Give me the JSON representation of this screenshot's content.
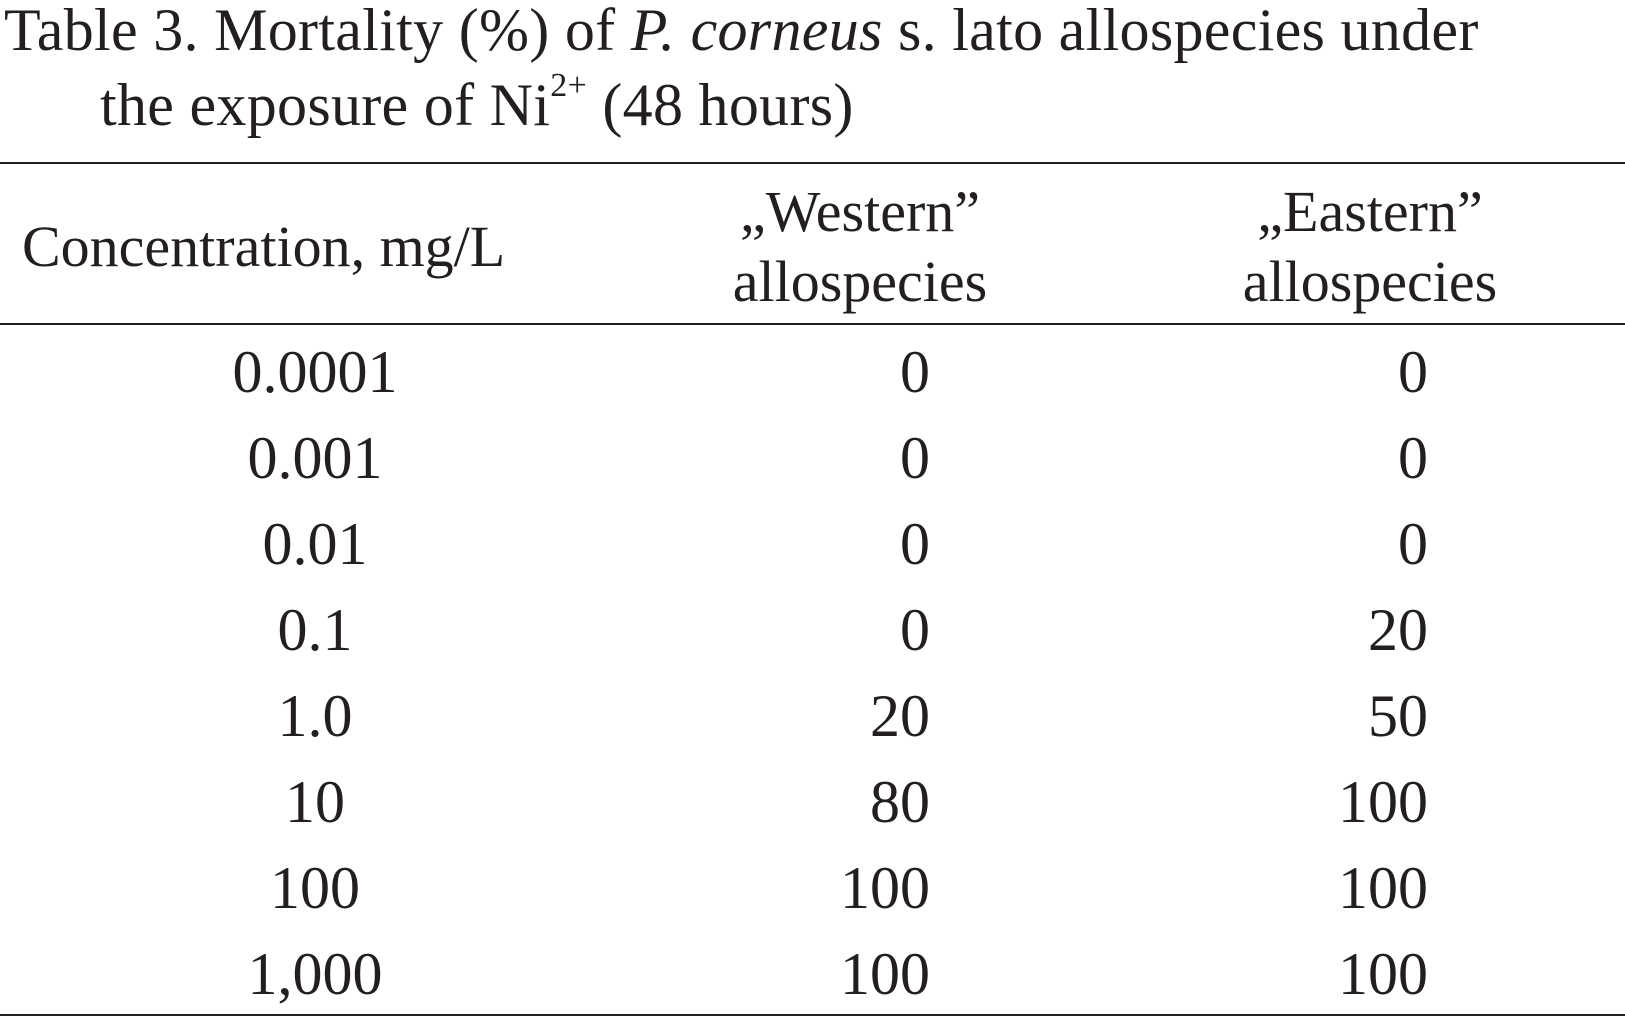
{
  "caption": {
    "part1": "Table 3. Mortality (%) of ",
    "italic": "P. corneus",
    "part2": " s. lato allospecies under",
    "line2_pre": "the exposure of Ni",
    "superscript": "2+",
    "line2_post": " (48 hours)"
  },
  "columns": {
    "concentration": "Concentration, mg/L",
    "western_line1": "„Western”",
    "western_line2": "allospecies",
    "eastern_line1": "„Eastern”",
    "eastern_line2": "allospecies"
  },
  "rows": [
    {
      "concentration": "0.0001",
      "western": "0",
      "eastern": "0"
    },
    {
      "concentration": "0.001",
      "western": "0",
      "eastern": "0"
    },
    {
      "concentration": "0.01",
      "western": "0",
      "eastern": "0"
    },
    {
      "concentration": "0.1",
      "western": "0",
      "eastern": "20"
    },
    {
      "concentration": "1.0",
      "western": "20",
      "eastern": "50"
    },
    {
      "concentration": "10",
      "western": "80",
      "eastern": "100"
    },
    {
      "concentration": "100",
      "western": "100",
      "eastern": "100"
    },
    {
      "concentration": "1,000",
      "western": "100",
      "eastern": "100"
    }
  ]
}
